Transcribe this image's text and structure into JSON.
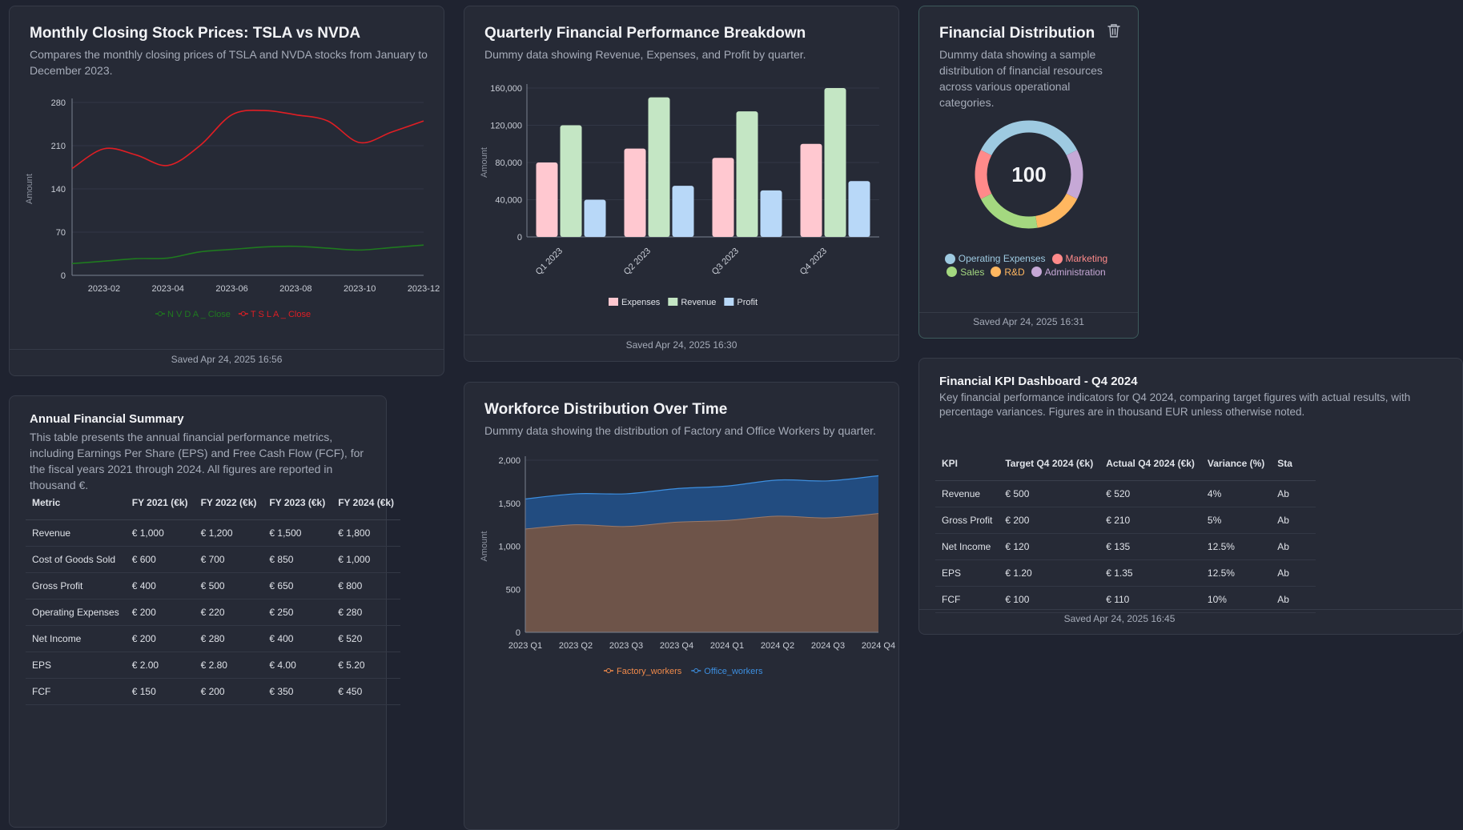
{
  "cards": {
    "stock": {
      "title": "Monthly Closing Stock Prices: TSLA vs NVDA",
      "description": "Compares the monthly closing prices of TSLA and NVDA stocks from January to December 2023.",
      "saved": "Saved Apr 24, 2025 16:56"
    },
    "quarterly": {
      "title": "Quarterly Financial Performance Breakdown",
      "description": "Dummy data showing Revenue, Expenses, and Profit by quarter.",
      "saved": "Saved Apr 24, 2025 16:30"
    },
    "distribution": {
      "title": "Financial Distribution",
      "description": "Dummy data showing a sample distribution of financial resources across various operational categories.",
      "center_value": "100",
      "saved": "Saved Apr 24, 2025 16:31"
    },
    "annual": {
      "title": "Annual Financial Summary",
      "description": "This table presents the annual financial performance metrics, including Earnings Per Share (EPS) and Free Cash Flow (FCF), for the fiscal years 2021 through 2024. All figures are reported in thousand €.",
      "columns": [
        "Metric",
        "FY 2021 (€k)",
        "FY 2022 (€k)",
        "FY 2023 (€k)",
        "FY 2024 (€k)"
      ],
      "rows": [
        [
          "Revenue",
          "€ 1,000",
          "€ 1,200",
          "€ 1,500",
          "€ 1,800"
        ],
        [
          "Cost of Goods Sold",
          "€ 600",
          "€ 700",
          "€ 850",
          "€ 1,000"
        ],
        [
          "Gross Profit",
          "€ 400",
          "€ 500",
          "€ 650",
          "€ 800"
        ],
        [
          "Operating Expenses",
          "€ 200",
          "€ 220",
          "€ 250",
          "€ 280"
        ],
        [
          "Net Income",
          "€ 200",
          "€ 280",
          "€ 400",
          "€ 520"
        ],
        [
          "EPS",
          "€ 2.00",
          "€ 2.80",
          "€ 4.00",
          "€ 5.20"
        ],
        [
          "FCF",
          "€ 150",
          "€ 200",
          "€ 350",
          "€ 450"
        ]
      ]
    },
    "workforce": {
      "title": "Workforce Distribution Over Time",
      "description": "Dummy data showing the distribution of Factory and Office Workers by quarter."
    },
    "kpi": {
      "title": "Financial KPI Dashboard - Q4 2024",
      "description": "Key financial performance indicators for Q4 2024, comparing target figures with actual results, with percentage variances. Figures are in thousand EUR unless otherwise noted.",
      "columns": [
        "KPI",
        "Target Q4 2024 (€k)",
        "Actual Q4 2024 (€k)",
        "Variance (%)",
        "Sta"
      ],
      "rows": [
        [
          "Revenue",
          "€ 500",
          "€ 520",
          "4%",
          "Ab"
        ],
        [
          "Gross Profit",
          "€ 200",
          "€ 210",
          "5%",
          "Ab"
        ],
        [
          "Net Income",
          "€ 120",
          "€ 135",
          "12.5%",
          "Ab"
        ],
        [
          "EPS",
          "€ 1.20",
          "€ 1.35",
          "12.5%",
          "Ab"
        ],
        [
          "FCF",
          "€ 100",
          "€ 110",
          "10%",
          "Ab"
        ]
      ],
      "saved": "Saved Apr 24, 2025 16:45"
    }
  },
  "chart_data": [
    {
      "id": "stock",
      "type": "line",
      "title": "Monthly Closing Stock Prices: TSLA vs NVDA",
      "ylabel": "Amount",
      "ylim": [
        0,
        280
      ],
      "yticks": [
        0,
        70,
        140,
        210,
        280
      ],
      "x": [
        "2023-01",
        "2023-02",
        "2023-03",
        "2023-04",
        "2023-05",
        "2023-06",
        "2023-07",
        "2023-08",
        "2023-09",
        "2023-10",
        "2023-11",
        "2023-12"
      ],
      "xticks": [
        "2023-02",
        "2023-04",
        "2023-06",
        "2023-08",
        "2023-10",
        "2023-12"
      ],
      "series": [
        {
          "name": "N V D A _ Close",
          "color": "#1f7a1f",
          "values": [
            19,
            23,
            27,
            28,
            38,
            42,
            46,
            47,
            44,
            41,
            45,
            49
          ]
        },
        {
          "name": "T S L A _ Close",
          "color": "#e01e24",
          "values": [
            173,
            205,
            195,
            178,
            210,
            260,
            267,
            260,
            250,
            215,
            232,
            250
          ]
        }
      ]
    },
    {
      "id": "quarterly",
      "type": "bar",
      "title": "Quarterly Financial Performance Breakdown",
      "ylabel": "Amount",
      "ylim": [
        0,
        160000
      ],
      "yticks": [
        0,
        40000,
        80000,
        120000,
        160000
      ],
      "ytick_labels": [
        "0",
        "40,000",
        "80,000",
        "120,000",
        "160,000"
      ],
      "categories": [
        "Q1 2023",
        "Q2 2023",
        "Q3 2023",
        "Q4 2023"
      ],
      "series": [
        {
          "name": "Expenses",
          "color": "#ffc8d0",
          "values": [
            80000,
            95000,
            85000,
            100000
          ]
        },
        {
          "name": "Revenue",
          "color": "#c4e6c4",
          "values": [
            120000,
            150000,
            135000,
            160000
          ]
        },
        {
          "name": "Profit",
          "color": "#b8d8f8",
          "values": [
            40000,
            55000,
            50000,
            60000
          ]
        }
      ]
    },
    {
      "id": "distribution",
      "type": "pie",
      "title": "Financial Distribution",
      "total": 100,
      "series": [
        {
          "name": "Operating Expenses",
          "color": "#9ecae1",
          "value": 35
        },
        {
          "name": "Marketing",
          "color": "#ff8a8a",
          "value": 15
        },
        {
          "name": "Sales",
          "color": "#a4d880",
          "value": 20
        },
        {
          "name": "R&D",
          "color": "#ffb760",
          "value": 15
        },
        {
          "name": "Administration",
          "color": "#c6a8d6",
          "value": 15
        }
      ],
      "order": [
        "Operating Expenses",
        "Administration",
        "R&D",
        "Sales",
        "Marketing"
      ]
    },
    {
      "id": "workforce",
      "type": "area",
      "title": "Workforce Distribution Over Time",
      "ylabel": "Amount",
      "ylim": [
        0,
        2000
      ],
      "yticks": [
        0,
        500,
        1000,
        1500,
        2000
      ],
      "ytick_labels": [
        "0",
        "500",
        "1,000",
        "1,500",
        "2,000"
      ],
      "categories": [
        "2023 Q1",
        "2023 Q2",
        "2023 Q3",
        "2023 Q4",
        "2024 Q1",
        "2024 Q2",
        "2024 Q3",
        "2024 Q4"
      ],
      "stacked": true,
      "series": [
        {
          "name": "Factory_workers",
          "color": "#f08a4b",
          "fill": "#6e5449",
          "values": [
            1200,
            1250,
            1230,
            1280,
            1300,
            1350,
            1330,
            1380
          ]
        },
        {
          "name": "Office_workers",
          "color": "#3d8fe0",
          "fill": "#224c80",
          "values": [
            350,
            360,
            380,
            390,
            400,
            420,
            430,
            440
          ]
        }
      ]
    }
  ]
}
